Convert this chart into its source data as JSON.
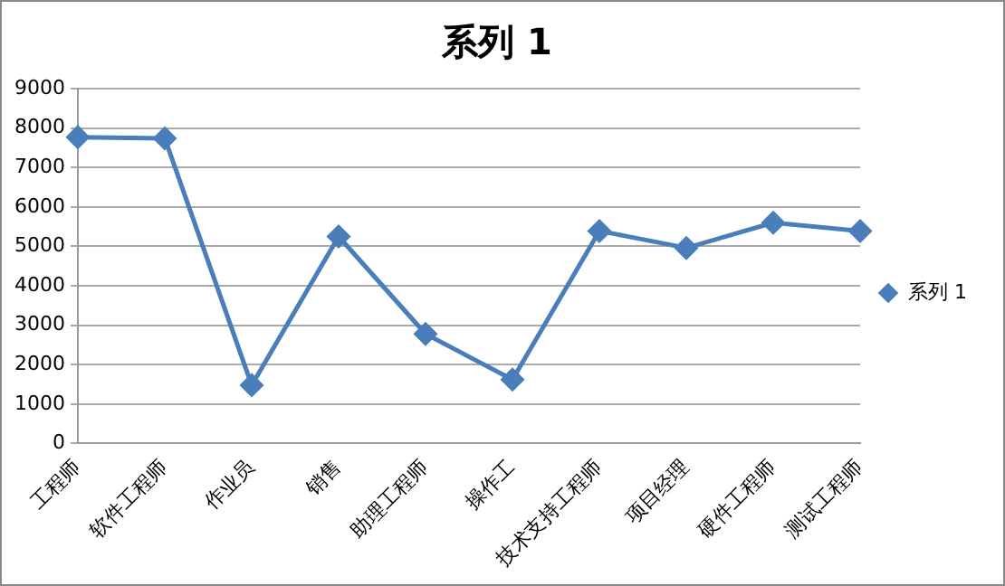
{
  "chart_data": {
    "type": "line",
    "title": "系列 1",
    "categories": [
      "工程师",
      "软件工程师",
      "作业员",
      "销售",
      "助理工程师",
      "操作工",
      "技术支持工程师",
      "项目经理",
      "硬件工程师",
      "测试工程师"
    ],
    "series": [
      {
        "name": "系列 1",
        "color": "#4a7ebb",
        "values": [
          7770,
          7740,
          1480,
          5250,
          2780,
          1620,
          5390,
          4960,
          5600,
          5390
        ]
      }
    ],
    "ylim": [
      0,
      9000
    ],
    "yticks": [
      0,
      1000,
      2000,
      3000,
      4000,
      5000,
      6000,
      7000,
      8000,
      9000
    ],
    "grid": "y",
    "legend": "right",
    "marker": "diamond",
    "line_style": "solid"
  }
}
